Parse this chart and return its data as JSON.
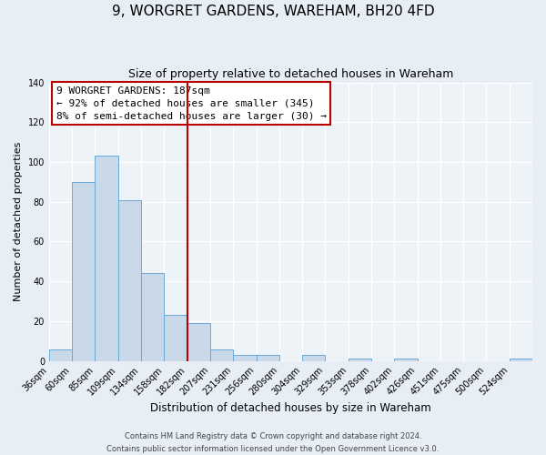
{
  "title": "9, WORGRET GARDENS, WAREHAM, BH20 4FD",
  "subtitle": "Size of property relative to detached houses in Wareham",
  "xlabel": "Distribution of detached houses by size in Wareham",
  "ylabel": "Number of detached properties",
  "bar_values": [
    6,
    90,
    103,
    81,
    44,
    23,
    19,
    6,
    3,
    3,
    0,
    3,
    0,
    1,
    0,
    1,
    0,
    0,
    0,
    0,
    1
  ],
  "bin_labels": [
    "36sqm",
    "60sqm",
    "85sqm",
    "109sqm",
    "134sqm",
    "158sqm",
    "182sqm",
    "207sqm",
    "231sqm",
    "256sqm",
    "280sqm",
    "304sqm",
    "329sqm",
    "353sqm",
    "378sqm",
    "402sqm",
    "426sqm",
    "451sqm",
    "475sqm",
    "500sqm",
    "524sqm"
  ],
  "bar_color": "#c9d9ea",
  "bar_edge_color": "#6aaad4",
  "vline_x_label": "182sqm",
  "vline_color": "#bb0000",
  "annotation_title": "9 WORGRET GARDENS: 187sqm",
  "annotation_line1": "← 92% of detached houses are smaller (345)",
  "annotation_line2": "8% of semi-detached houses are larger (30) →",
  "annotation_box_facecolor": "#ffffff",
  "annotation_box_edgecolor": "#bb0000",
  "ylim": [
    0,
    140
  ],
  "yticks": [
    0,
    20,
    40,
    60,
    80,
    100,
    120,
    140
  ],
  "footer_line1": "Contains HM Land Registry data © Crown copyright and database right 2024.",
  "footer_line2": "Contains public sector information licensed under the Open Government Licence v3.0.",
  "bg_color": "#e8eef5",
  "plot_bg_color": "#eef3f8",
  "grid_color": "#ffffff",
  "title_fontsize": 11,
  "subtitle_fontsize": 9,
  "ylabel_fontsize": 8,
  "xlabel_fontsize": 8.5,
  "tick_fontsize": 7,
  "ann_fontsize": 8,
  "footer_fontsize": 6
}
